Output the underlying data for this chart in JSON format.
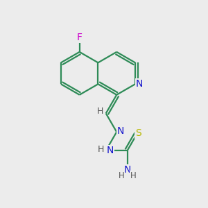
{
  "background_color": "#ececec",
  "atom_colors": {
    "C": "#000000",
    "N": "#1414cc",
    "F": "#cc00cc",
    "S": "#b8b800",
    "H": "#555555"
  },
  "bond_color": "#2e8b57",
  "bond_width": 1.6,
  "dbo": 0.12,
  "figsize": [
    3.0,
    3.0
  ],
  "dpi": 100
}
